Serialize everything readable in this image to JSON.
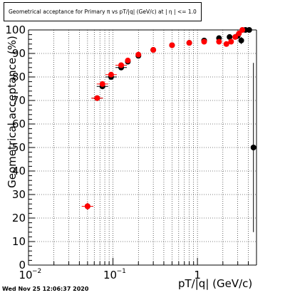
{
  "chart_data": {
    "type": "scatter",
    "title": "Geometrical acceptance for Primary π vs pT/|q| (GeV/c) at | η | <= 1.0",
    "xlabel": "pT/|q| (GeV/c)",
    "ylabel": "Geometrical acceptance (%)",
    "xscale": "log",
    "xlim": [
      0.01,
      5.0
    ],
    "ylim": [
      0,
      100
    ],
    "grid": true,
    "yticks": [
      0,
      10,
      20,
      30,
      40,
      50,
      60,
      70,
      80,
      90,
      100
    ],
    "xticks": [
      {
        "value": 0.01,
        "label": "10",
        "exp": "−2"
      },
      {
        "value": 0.1,
        "label": "10",
        "exp": "−1"
      },
      {
        "value": 1.0,
        "label": "1",
        "exp": ""
      }
    ],
    "series": [
      {
        "color": "#000000",
        "marker": "circle",
        "points": [
          {
            "x": 0.05,
            "y": 25,
            "yerr": 1.5
          },
          {
            "x": 0.065,
            "y": 71,
            "yerr": 0.8
          },
          {
            "x": 0.075,
            "y": 76,
            "yerr": 0.8
          },
          {
            "x": 0.095,
            "y": 80,
            "yerr": 0.7
          },
          {
            "x": 0.125,
            "y": 84,
            "yerr": 0.6
          },
          {
            "x": 0.15,
            "y": 86.5
          },
          {
            "x": 0.2,
            "y": 89
          },
          {
            "x": 0.3,
            "y": 91.5
          },
          {
            "x": 0.5,
            "y": 93.5
          },
          {
            "x": 0.8,
            "y": 94.5
          },
          {
            "x": 1.2,
            "y": 95.5
          },
          {
            "x": 1.8,
            "y": 96.5
          },
          {
            "x": 2.4,
            "y": 97
          },
          {
            "x": 3.0,
            "y": 97.5
          },
          {
            "x": 3.3,
            "y": 95.5,
            "yerr": 1.5
          },
          {
            "x": 3.7,
            "y": 100
          },
          {
            "x": 4.1,
            "y": 100
          },
          {
            "x": 4.6,
            "y": 50,
            "yerr": 36
          }
        ]
      },
      {
        "color": "#ff0000",
        "marker": "circle",
        "points": [
          {
            "x": 0.05,
            "y": 25,
            "yerr": 1.5
          },
          {
            "x": 0.065,
            "y": 71,
            "yerr": 0.8
          },
          {
            "x": 0.075,
            "y": 77,
            "yerr": 0.8
          },
          {
            "x": 0.095,
            "y": 81,
            "yerr": 0.7
          },
          {
            "x": 0.125,
            "y": 85,
            "yerr": 0.6
          },
          {
            "x": 0.15,
            "y": 87
          },
          {
            "x": 0.2,
            "y": 89.5
          },
          {
            "x": 0.3,
            "y": 91.5
          },
          {
            "x": 0.5,
            "y": 93.5
          },
          {
            "x": 0.8,
            "y": 94.5
          },
          {
            "x": 1.2,
            "y": 95
          },
          {
            "x": 1.8,
            "y": 95
          },
          {
            "x": 2.2,
            "y": 94
          },
          {
            "x": 2.5,
            "y": 95
          },
          {
            "x": 2.8,
            "y": 97
          },
          {
            "x": 3.1,
            "y": 98.5
          },
          {
            "x": 3.4,
            "y": 100
          }
        ]
      }
    ]
  },
  "footer": {
    "datestamp": "Wed Nov 25 12:06:37 2020"
  }
}
